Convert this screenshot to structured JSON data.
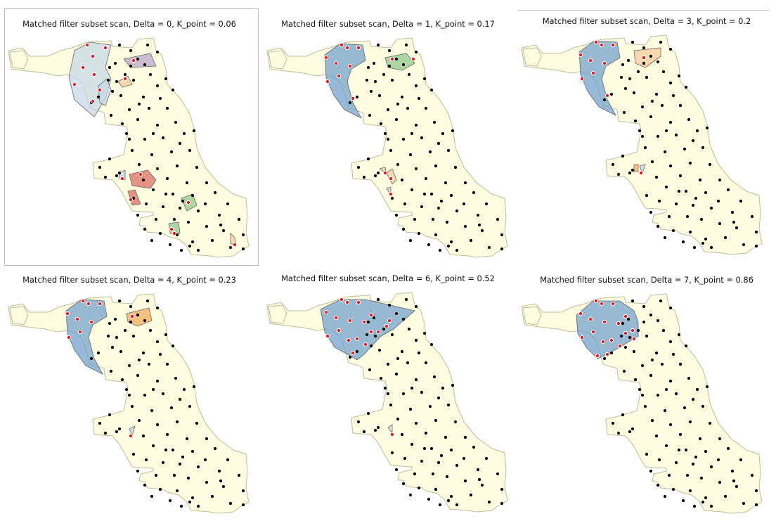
{
  "colors": {
    "city_fill": "#fffde1",
    "city_stroke": "#bdbd9a",
    "point_black": "#000000",
    "point_red": "#e8141c",
    "cluster_blue": "#6f9fcc",
    "cluster_lightblue": "#c5d8e8",
    "cluster_purple": "#b7a3c8",
    "cluster_peach": "#f4c99a",
    "cluster_green": "#8fc68a",
    "cluster_red": "#d9685c",
    "cluster_orange": "#f3a85a"
  },
  "panels": [
    {
      "title": "Matched filter subset scan, Delta = 0, K_point = 0.06",
      "delta": 0,
      "k_point": 0.06
    },
    {
      "title": "Matched filter subset scan, Delta = 1, K_point = 0.17",
      "delta": 1,
      "k_point": 0.17
    },
    {
      "title": "Matched filter subset scan, Delta = 3, K_point = 0.2",
      "delta": 3,
      "k_point": 0.2
    },
    {
      "title": "Matched filter subset scan, Delta = 4, K_point = 0.23",
      "delta": 4,
      "k_point": 0.23
    },
    {
      "title": "Matched filter subset scan, Delta = 6, K_point = 0.52",
      "delta": 6,
      "k_point": 0.52
    },
    {
      "title": "Matched filter subset scan, Delta = 7, K_point = 0.86",
      "delta": 7,
      "k_point": 0.86
    }
  ]
}
